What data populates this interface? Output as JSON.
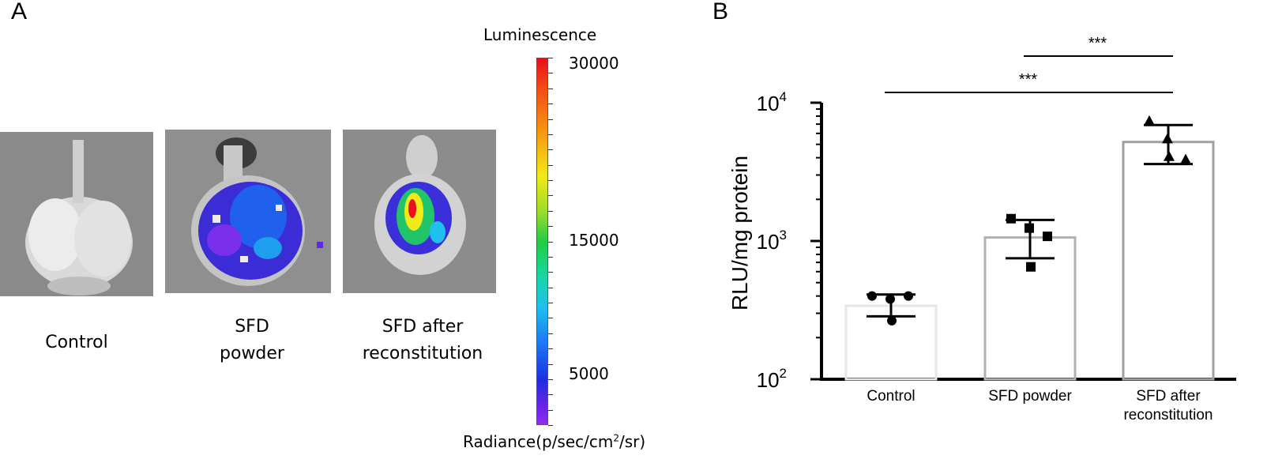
{
  "panel_a": {
    "letter": "A",
    "images": [
      {
        "label_line1": "Control",
        "label_line2": ""
      },
      {
        "label_line1": "SFD",
        "label_line2": "powder"
      },
      {
        "label_line1": "SFD after",
        "label_line2": "reconstitution"
      }
    ],
    "scale": {
      "title": "Luminescence",
      "ticks": [
        "30000",
        "15000",
        "5000"
      ],
      "unit_prefix": "Radiance(p/sec/cm",
      "unit_sup": "2",
      "unit_suffix": "/sr)",
      "colormap": [
        "#e8101a",
        "#f6a313",
        "#f0ea18",
        "#22cc44",
        "#1ec0ee",
        "#1d2de2",
        "#8a2ef0"
      ]
    }
  },
  "panel_b": {
    "letter": "B"
  },
  "chart_data": {
    "type": "bar",
    "ylabel": "RLU/mg protein",
    "yscale": "log",
    "ylim": [
      100,
      10000
    ],
    "ytick_labels": [
      {
        "base": "10",
        "exp": "2",
        "value": 100
      },
      {
        "base": "10",
        "exp": "3",
        "value": 1000
      },
      {
        "base": "10",
        "exp": "4",
        "value": 10000
      }
    ],
    "categories": [
      {
        "label_lines": [
          "Control"
        ],
        "mean": 340,
        "err_low": 285,
        "err_high": 410,
        "marker": "circle",
        "bar_color": "#e6e6e6",
        "points": [
          400,
          380,
          400,
          265
        ]
      },
      {
        "label_lines": [
          "SFD powder"
        ],
        "mean": 1060,
        "err_low": 750,
        "err_high": 1420,
        "marker": "square",
        "bar_color": "#b0b0b0",
        "points": [
          1450,
          1240,
          1080,
          650
        ]
      },
      {
        "label_lines": [
          "SFD after",
          "reconstitution"
        ],
        "mean": 5200,
        "err_low": 3600,
        "err_high": 6900,
        "marker": "triangle",
        "bar_color": "#a0a0a0",
        "points": [
          7400,
          5500,
          3900,
          4100
        ]
      }
    ],
    "significance": [
      {
        "from": 1,
        "to": 2,
        "label": "***"
      },
      {
        "from": 0,
        "to": 2,
        "label": "***"
      }
    ]
  }
}
